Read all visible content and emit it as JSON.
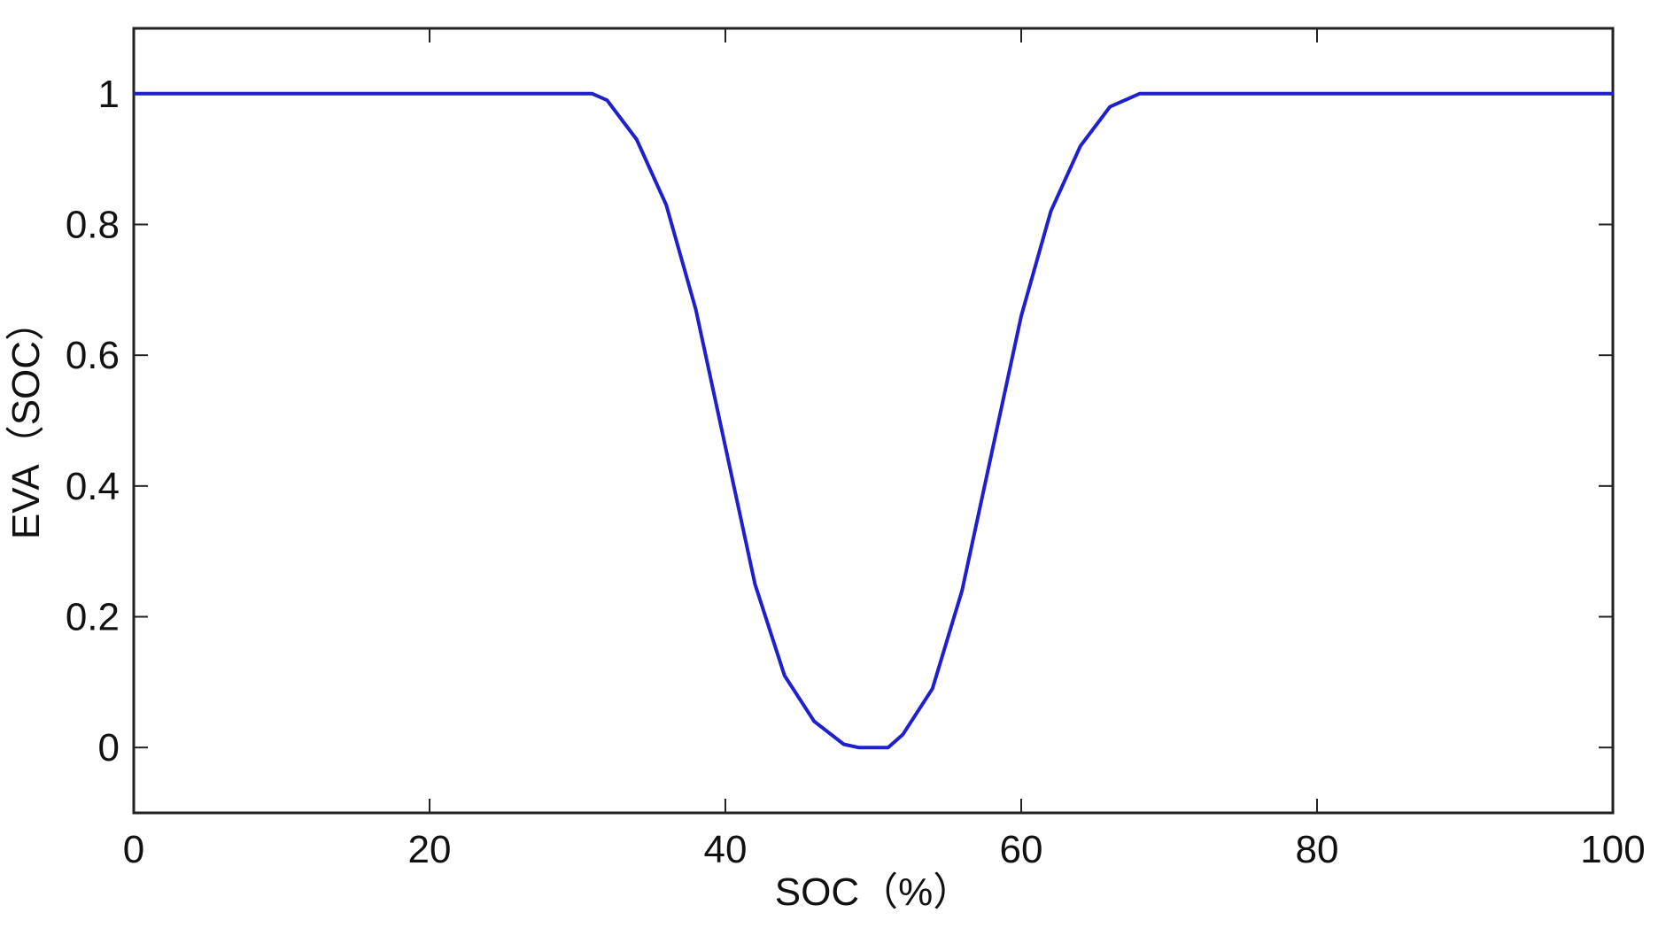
{
  "chart_data": {
    "type": "line",
    "title": "",
    "xlabel": "SOC（%）",
    "ylabel": "EVA（SOC）",
    "xlim": [
      0,
      100
    ],
    "ylim": [
      -0.1,
      1.1
    ],
    "xticks": [
      0,
      20,
      40,
      60,
      80,
      100
    ],
    "yticks": [
      0,
      0.2,
      0.4,
      0.6,
      0.8,
      1
    ],
    "xtick_labels": [
      "0",
      "20",
      "40",
      "60",
      "80",
      "100"
    ],
    "ytick_labels": [
      "0",
      "0.2",
      "0.4",
      "0.6",
      "0.8",
      "1"
    ],
    "grid": false,
    "series": [
      {
        "color": "#1f1fcf",
        "x": [
          0,
          10,
          20,
          30,
          31,
          32,
          34,
          36,
          38,
          40,
          42,
          44,
          46,
          48,
          49,
          50,
          51,
          52,
          54,
          56,
          58,
          60,
          62,
          64,
          66,
          68,
          69,
          70,
          80,
          90,
          100
        ],
        "y": [
          1,
          1,
          1,
          1,
          1,
          0.99,
          0.93,
          0.83,
          0.67,
          0.46,
          0.25,
          0.11,
          0.04,
          0.005,
          0,
          0,
          0,
          0.02,
          0.09,
          0.24,
          0.45,
          0.66,
          0.82,
          0.92,
          0.98,
          1,
          1,
          1,
          1,
          1,
          1
        ]
      }
    ]
  }
}
